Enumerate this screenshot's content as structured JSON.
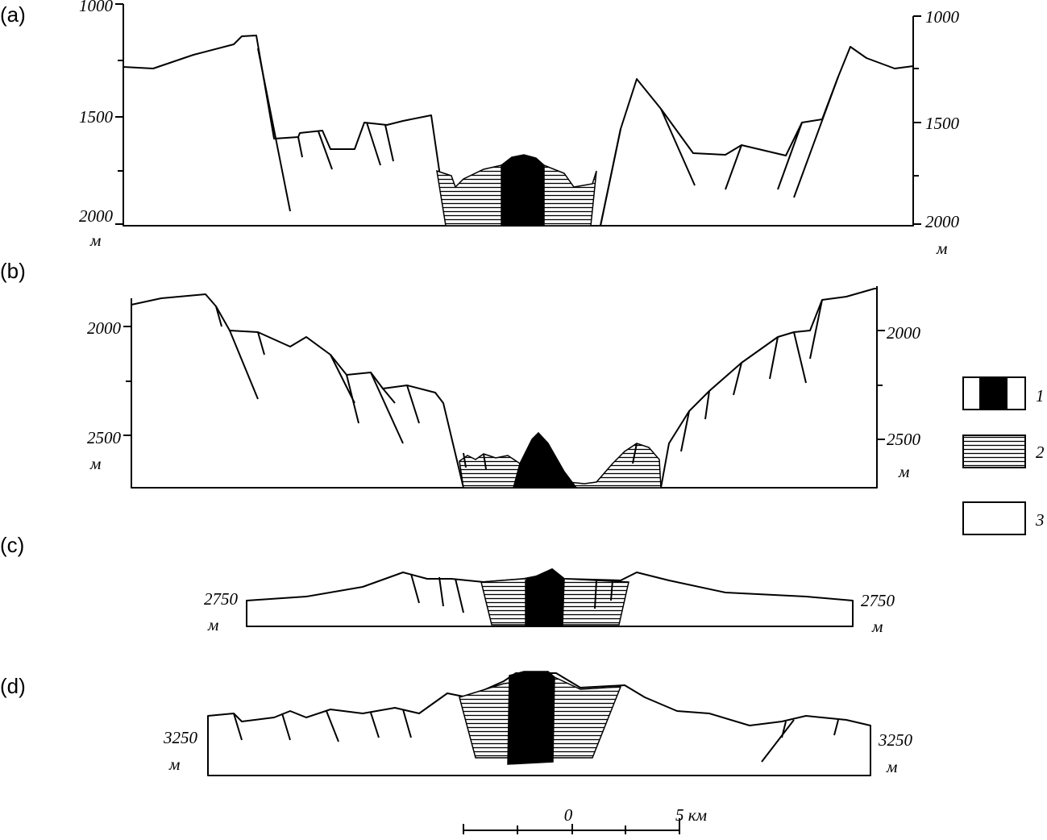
{
  "panels": [
    {
      "label": "(a)",
      "left_ticks": [
        "1000",
        "1500",
        "2000"
      ],
      "left_unit": "м",
      "right_ticks": [
        "1000",
        "1500",
        "2000"
      ],
      "right_unit": "м"
    },
    {
      "label": "(b)",
      "left_ticks": [
        "2000",
        "2500"
      ],
      "left_unit": "м",
      "right_ticks": [
        "2000",
        "2500"
      ],
      "right_unit": "м"
    },
    {
      "label": "(c)",
      "left_ticks": [
        "2750"
      ],
      "left_unit": "м",
      "right_ticks": [
        "2750"
      ],
      "right_unit": "м"
    },
    {
      "label": "(d)",
      "left_ticks": [
        "3250"
      ],
      "left_unit": "м",
      "right_ticks": [
        "3250"
      ],
      "right_unit": "м"
    }
  ],
  "legend": [
    {
      "label": "1"
    },
    {
      "label": "2"
    },
    {
      "label": "3"
    }
  ],
  "scale": {
    "zero": "0",
    "end": "5 км"
  }
}
